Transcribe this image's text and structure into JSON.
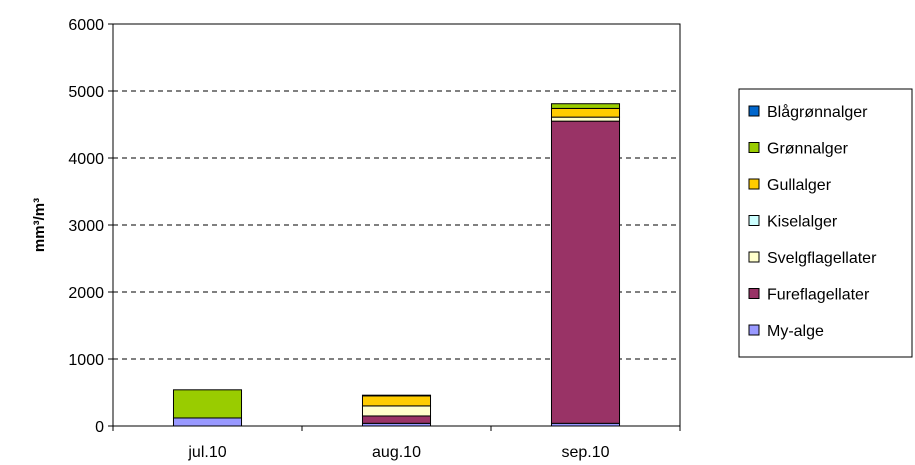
{
  "chart_data": {
    "type": "bar",
    "stacked": true,
    "categories": [
      "jul.10",
      "aug.10",
      "sep.10"
    ],
    "ylabel": "mm³/m³",
    "ylim": [
      0,
      6000
    ],
    "yticks": [
      0,
      1000,
      2000,
      3000,
      4000,
      5000,
      6000
    ],
    "grid": true,
    "legend_position": "right",
    "series": [
      {
        "name": "My-alge",
        "color": "#9999FF",
        "values": [
          120,
          40,
          40
        ]
      },
      {
        "name": "Fureflagellater",
        "color": "#993366",
        "values": [
          0,
          110,
          4510
        ]
      },
      {
        "name": "Svelgflagellater",
        "color": "#FFFFCC",
        "values": [
          0,
          150,
          60
        ]
      },
      {
        "name": "Kiselalger",
        "color": "#CCFFFF",
        "values": [
          0,
          0,
          0
        ]
      },
      {
        "name": "Gullalger",
        "color": "#FFCC00",
        "values": [
          0,
          150,
          130
        ]
      },
      {
        "name": "Grønnalger",
        "color": "#99CC00",
        "values": [
          420,
          10,
          70
        ]
      },
      {
        "name": "Blågrønnalger",
        "color": "#0066CC",
        "values": [
          0,
          0,
          0
        ]
      }
    ],
    "legend_order": [
      "Blågrønnalger",
      "Grønnalger",
      "Gullalger",
      "Kiselalger",
      "Svelgflagellater",
      "Fureflagellater",
      "My-alge"
    ]
  }
}
